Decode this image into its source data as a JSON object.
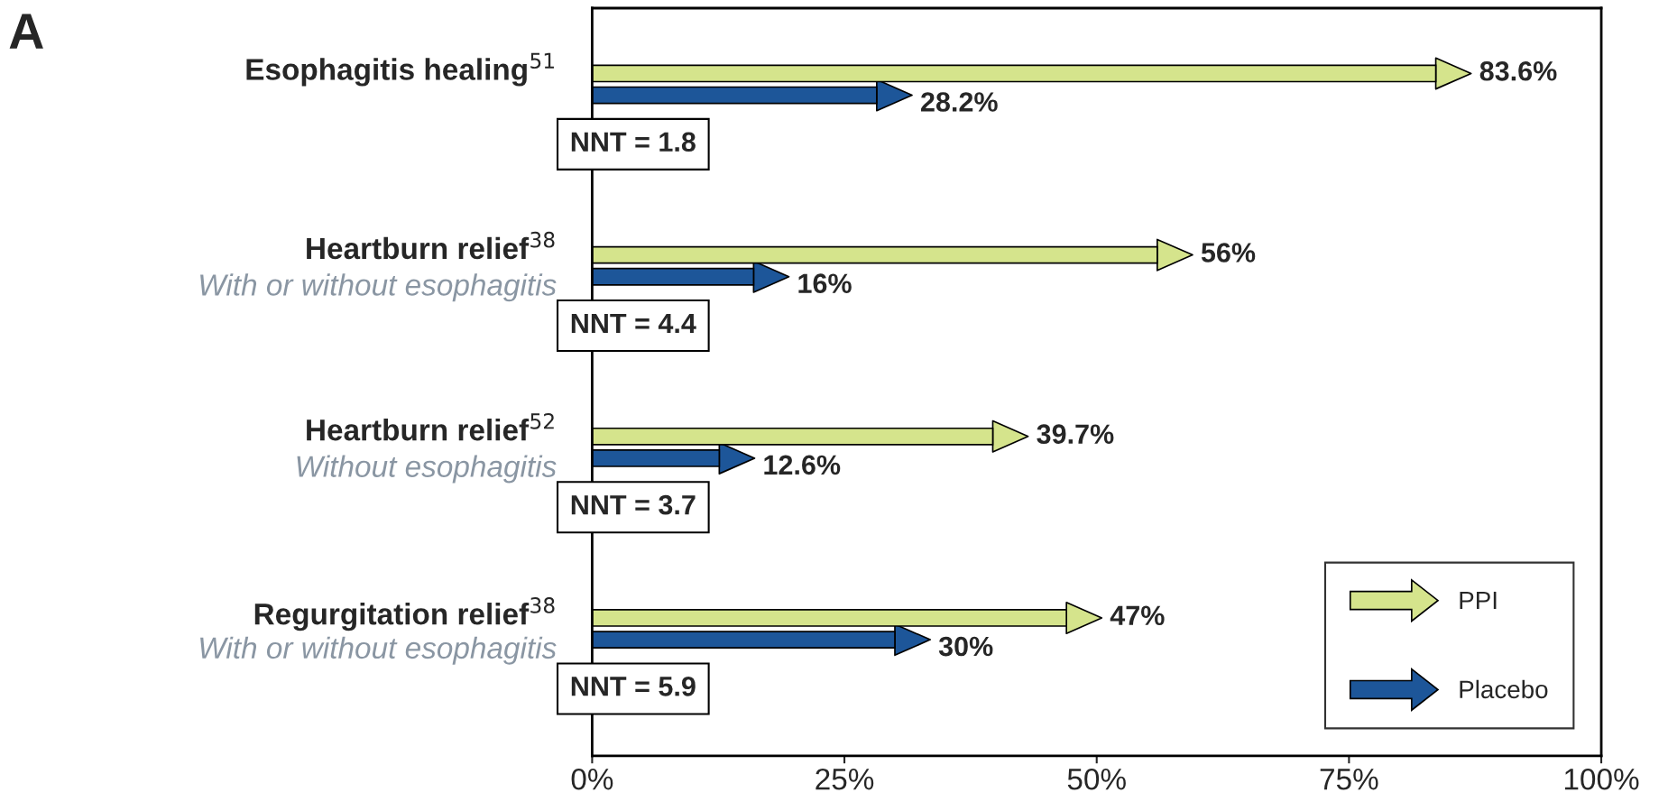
{
  "chart_data": {
    "type": "bar",
    "orientation": "horizontal",
    "title": "A",
    "categories": [
      "Esophagitis healing$^{51}$",
      "Heartburn relief$^{38}$\nWith or without esophagitis",
      "Heartburn relief$^{52}$\nWithout esophagitis",
      "Regurgitation relief$^{38}$\nWith or without esophagitis"
    ],
    "series": [
      {
        "name": "PPI",
        "color": "#d5e48c",
        "values": [
          83.6,
          56,
          39.7,
          47
        ],
        "value_labels": [
          "83.6%",
          "56%",
          "39.7%",
          "47%"
        ]
      },
      {
        "name": "Placebo",
        "color": "#1d5699",
        "values": [
          28.2,
          16,
          12.6,
          30
        ],
        "value_labels": [
          "28.2%",
          "16%",
          "12.6%",
          "30%"
        ]
      }
    ],
    "annotations": [
      "NNT = 1.8",
      "NNT = 4.4",
      "NNT = 3.7",
      "NNT = 5.9"
    ],
    "xlim": [
      0,
      100
    ],
    "xticks": [
      {
        "value": 0,
        "label": "0%"
      },
      {
        "value": 25,
        "label": "25%"
      },
      {
        "value": 50,
        "label": "50%"
      },
      {
        "value": 75,
        "label": "75%"
      },
      {
        "value": 100,
        "label": "100%"
      }
    ],
    "grid": false,
    "legend": "bottom right"
  }
}
